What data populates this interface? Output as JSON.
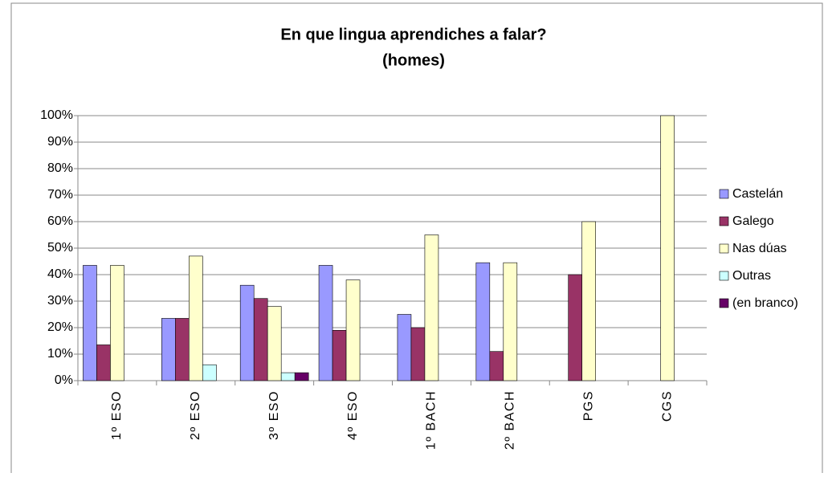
{
  "chart_data": {
    "type": "bar",
    "title": "En que lingua aprendiches a falar?",
    "subtitle": "(homes)",
    "categories": [
      "1º ESO",
      "2º ESO",
      "3º ESO",
      "4º ESO",
      "1º BACH",
      "2º BACH",
      "PGS",
      "CGS"
    ],
    "series": [
      {
        "name": "Castelán",
        "color": "#9999ff",
        "values": [
          43.5,
          23.5,
          36,
          43.5,
          25,
          44.5,
          0,
          0
        ]
      },
      {
        "name": "Galego",
        "color": "#993366",
        "values": [
          13.5,
          23.5,
          31,
          19,
          20,
          11,
          40,
          0
        ]
      },
      {
        "name": "Nas dúas",
        "color": "#ffffcc",
        "values": [
          43.5,
          47,
          28,
          38,
          55,
          44.5,
          60,
          100
        ]
      },
      {
        "name": "Outras",
        "color": "#ccffff",
        "values": [
          0,
          6,
          3,
          0,
          0,
          0,
          0,
          0
        ]
      },
      {
        "name": "(en branco)",
        "color": "#660066",
        "values": [
          0,
          0,
          3,
          0,
          0,
          0,
          0,
          0
        ]
      }
    ],
    "ylim": [
      0,
      100
    ],
    "yticks": [
      {
        "value": 0,
        "label": "0%"
      },
      {
        "value": 10,
        "label": "10%"
      },
      {
        "value": 20,
        "label": "20%"
      },
      {
        "value": 30,
        "label": "30%"
      },
      {
        "value": 40,
        "label": "40%"
      },
      {
        "value": 50,
        "label": "50%"
      },
      {
        "value": 60,
        "label": "60%"
      },
      {
        "value": 70,
        "label": "70%"
      },
      {
        "value": 80,
        "label": "80%"
      },
      {
        "value": 90,
        "label": "90%"
      },
      {
        "value": 100,
        "label": "100%"
      }
    ],
    "grid": true,
    "legend": "right"
  }
}
